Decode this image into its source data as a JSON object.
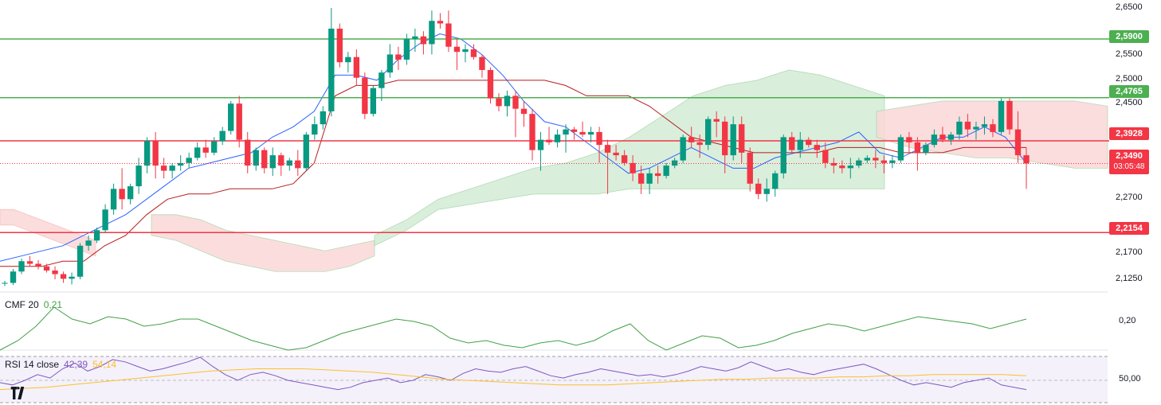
{
  "colors": {
    "up": "#089981",
    "down": "#f23645",
    "support_line": "#4caf50",
    "resistance_line": "#f23645",
    "tenkan": "#2962ff",
    "kijun": "#b71c1c",
    "cloud_bull": "#d4ecd6",
    "cloud_bear": "#fbd8d8",
    "cmf_line": "#43a047",
    "rsi_line": "#7e57c2",
    "rsi_ma": "#fbc02d"
  },
  "price_axis": {
    "ticks": [
      "2,6500",
      "2,5500",
      "2,5000",
      "2,4500",
      "2,2700",
      "2,1700",
      "2,1250"
    ]
  },
  "levels": [
    {
      "label": "2,5900",
      "kind": "support"
    },
    {
      "label": "2,4765",
      "kind": "support"
    },
    {
      "label": "2,3928",
      "kind": "resistance"
    },
    {
      "label": "2,2154",
      "kind": "resistance"
    }
  ],
  "current_price": {
    "label": "2,3490",
    "countdown": "03:05:48"
  },
  "cmf": {
    "name": "CMF 20",
    "value": "0,21",
    "axis_label": "0,20"
  },
  "rsi": {
    "name": "RSI 14 close",
    "value": "42,39",
    "ma_value": "54,14",
    "axis_label": "50,00"
  },
  "chart_data": {
    "type": "candlestick",
    "price_axis_labels": [
      "2,6500",
      "2,5500",
      "2,5000",
      "2,4500",
      "2,2700",
      "2,1700",
      "2,1250"
    ],
    "horizontal_levels": [
      2.59,
      2.4765,
      2.3928,
      2.2154
    ],
    "last_price": 2.349,
    "candles_ohlc": [
      [
        2.117,
        2.122,
        2.112,
        2.118
      ],
      [
        2.118,
        2.145,
        2.114,
        2.14
      ],
      [
        2.14,
        2.165,
        2.135,
        2.16
      ],
      [
        2.16,
        2.17,
        2.15,
        2.155
      ],
      [
        2.155,
        2.162,
        2.144,
        2.15
      ],
      [
        2.15,
        2.155,
        2.138,
        2.142
      ],
      [
        2.142,
        2.15,
        2.125,
        2.135
      ],
      [
        2.135,
        2.14,
        2.118,
        2.126
      ],
      [
        2.126,
        2.138,
        2.115,
        2.13
      ],
      [
        2.13,
        2.195,
        2.125,
        2.19
      ],
      [
        2.19,
        2.21,
        2.18,
        2.2
      ],
      [
        2.2,
        2.225,
        2.195,
        2.22
      ],
      [
        2.22,
        2.27,
        2.215,
        2.26
      ],
      [
        2.26,
        2.31,
        2.25,
        2.3
      ],
      [
        2.3,
        2.34,
        2.26,
        2.28
      ],
      [
        2.28,
        2.31,
        2.27,
        2.305
      ],
      [
        2.305,
        2.36,
        2.29,
        2.345
      ],
      [
        2.345,
        2.4,
        2.33,
        2.393
      ],
      [
        2.393,
        2.41,
        2.32,
        2.345
      ],
      [
        2.345,
        2.36,
        2.32,
        2.335
      ],
      [
        2.335,
        2.35,
        2.32,
        2.345
      ],
      [
        2.345,
        2.365,
        2.335,
        2.35
      ],
      [
        2.35,
        2.37,
        2.34,
        2.36
      ],
      [
        2.36,
        2.39,
        2.355,
        2.38
      ],
      [
        2.38,
        2.395,
        2.36,
        2.37
      ],
      [
        2.37,
        2.4,
        2.365,
        2.392
      ],
      [
        2.392,
        2.42,
        2.385,
        2.412
      ],
      [
        2.412,
        2.47,
        2.405,
        2.465
      ],
      [
        2.465,
        2.48,
        2.38,
        2.395
      ],
      [
        2.395,
        2.41,
        2.33,
        2.345
      ],
      [
        2.345,
        2.38,
        2.335,
        2.375
      ],
      [
        2.375,
        2.38,
        2.33,
        2.34
      ],
      [
        2.34,
        2.38,
        2.325,
        2.365
      ],
      [
        2.365,
        2.37,
        2.325,
        2.345
      ],
      [
        2.345,
        2.36,
        2.335,
        2.355
      ],
      [
        2.355,
        2.375,
        2.325,
        2.34
      ],
      [
        2.34,
        2.41,
        2.335,
        2.405
      ],
      [
        2.405,
        2.44,
        2.395,
        2.425
      ],
      [
        2.425,
        2.46,
        2.415,
        2.45
      ],
      [
        2.45,
        2.65,
        2.44,
        2.61
      ],
      [
        2.61,
        2.62,
        2.535,
        2.545
      ],
      [
        2.545,
        2.565,
        2.525,
        2.555
      ],
      [
        2.555,
        2.57,
        2.5,
        2.515
      ],
      [
        2.515,
        2.525,
        2.435,
        2.445
      ],
      [
        2.445,
        2.5,
        2.44,
        2.495
      ],
      [
        2.495,
        2.53,
        2.47,
        2.525
      ],
      [
        2.525,
        2.58,
        2.515,
        2.56
      ],
      [
        2.56,
        2.575,
        2.53,
        2.55
      ],
      [
        2.55,
        2.6,
        2.54,
        2.59
      ],
      [
        2.59,
        2.61,
        2.565,
        2.595
      ],
      [
        2.595,
        2.605,
        2.56,
        2.58
      ],
      [
        2.58,
        2.645,
        2.56,
        2.625
      ],
      [
        2.625,
        2.64,
        2.61,
        2.62
      ],
      [
        2.62,
        2.645,
        2.565,
        2.575
      ],
      [
        2.575,
        2.59,
        2.53,
        2.565
      ],
      [
        2.565,
        2.58,
        2.545,
        2.57
      ],
      [
        2.57,
        2.58,
        2.55,
        2.555
      ],
      [
        2.555,
        2.56,
        2.515,
        2.53
      ],
      [
        2.53,
        2.535,
        2.465,
        2.475
      ],
      [
        2.475,
        2.485,
        2.45,
        2.46
      ],
      [
        2.46,
        2.49,
        2.44,
        2.48
      ],
      [
        2.48,
        2.49,
        2.4,
        2.455
      ],
      [
        2.455,
        2.47,
        2.42,
        2.445
      ],
      [
        2.445,
        2.455,
        2.355,
        2.375
      ],
      [
        2.375,
        2.41,
        2.335,
        2.395
      ],
      [
        2.395,
        2.42,
        2.385,
        2.39
      ],
      [
        2.39,
        2.415,
        2.38,
        2.405
      ],
      [
        2.405,
        2.425,
        2.37,
        2.415
      ],
      [
        2.415,
        2.42,
        2.395,
        2.41
      ],
      [
        2.41,
        2.43,
        2.4,
        2.405
      ],
      [
        2.405,
        2.42,
        2.39,
        2.41
      ],
      [
        2.41,
        2.42,
        2.35,
        2.385
      ],
      [
        2.385,
        2.395,
        2.29,
        2.37
      ],
      [
        2.37,
        2.385,
        2.355,
        2.365
      ],
      [
        2.365,
        2.375,
        2.345,
        2.35
      ],
      [
        2.35,
        2.365,
        2.315,
        2.33
      ],
      [
        2.33,
        2.345,
        2.29,
        2.31
      ],
      [
        2.31,
        2.34,
        2.29,
        2.33
      ],
      [
        2.33,
        2.345,
        2.31,
        2.325
      ],
      [
        2.325,
        2.35,
        2.32,
        2.345
      ],
      [
        2.345,
        2.36,
        2.34,
        2.355
      ],
      [
        2.355,
        2.405,
        2.35,
        2.4
      ],
      [
        2.4,
        2.42,
        2.38,
        2.39
      ],
      [
        2.39,
        2.405,
        2.36,
        2.385
      ],
      [
        2.385,
        2.44,
        2.375,
        2.435
      ],
      [
        2.435,
        2.45,
        2.4,
        2.43
      ],
      [
        2.43,
        2.44,
        2.33,
        2.365
      ],
      [
        2.365,
        2.44,
        2.355,
        2.425
      ],
      [
        2.425,
        2.44,
        2.35,
        2.37
      ],
      [
        2.37,
        2.38,
        2.295,
        2.31
      ],
      [
        2.31,
        2.32,
        2.28,
        2.29
      ],
      [
        2.29,
        2.32,
        2.275,
        2.3
      ],
      [
        2.3,
        2.335,
        2.285,
        2.33
      ],
      [
        2.33,
        2.405,
        2.32,
        2.4
      ],
      [
        2.4,
        2.41,
        2.37,
        2.375
      ],
      [
        2.375,
        2.41,
        2.36,
        2.395
      ],
      [
        2.395,
        2.4,
        2.38,
        2.385
      ],
      [
        2.385,
        2.395,
        2.36,
        2.375
      ],
      [
        2.375,
        2.39,
        2.34,
        2.35
      ],
      [
        2.35,
        2.36,
        2.33,
        2.345
      ],
      [
        2.345,
        2.355,
        2.33,
        2.34
      ],
      [
        2.34,
        2.36,
        2.32,
        2.345
      ],
      [
        2.345,
        2.36,
        2.34,
        2.355
      ],
      [
        2.355,
        2.365,
        2.35,
        2.36
      ],
      [
        2.36,
        2.375,
        2.34,
        2.355
      ],
      [
        2.355,
        2.365,
        2.33,
        2.35
      ],
      [
        2.35,
        2.365,
        2.34,
        2.355
      ],
      [
        2.355,
        2.405,
        2.35,
        2.4
      ],
      [
        2.4,
        2.41,
        2.37,
        2.39
      ],
      [
        2.39,
        2.4,
        2.335,
        2.37
      ],
      [
        2.37,
        2.39,
        2.365,
        2.385
      ],
      [
        2.385,
        2.415,
        2.38,
        2.405
      ],
      [
        2.405,
        2.42,
        2.39,
        2.395
      ],
      [
        2.395,
        2.41,
        2.385,
        2.405
      ],
      [
        2.405,
        2.44,
        2.395,
        2.43
      ],
      [
        2.43,
        2.445,
        2.4,
        2.415
      ],
      [
        2.415,
        2.43,
        2.395,
        2.42
      ],
      [
        2.42,
        2.44,
        2.405,
        2.425
      ],
      [
        2.425,
        2.435,
        2.4,
        2.41
      ],
      [
        2.41,
        2.475,
        2.405,
        2.47
      ],
      [
        2.47,
        2.475,
        2.405,
        2.415
      ],
      [
        2.415,
        2.45,
        2.35,
        2.365
      ],
      [
        2.365,
        2.38,
        2.3,
        2.349
      ]
    ],
    "tenkan": [
      2.16,
      2.17,
      2.18,
      2.19,
      2.21,
      2.23,
      2.25,
      2.28,
      2.31,
      2.34,
      2.35,
      2.36,
      2.37,
      2.4,
      2.42,
      2.45,
      2.52,
      2.52,
      2.51,
      2.55,
      2.58,
      2.6,
      2.59,
      2.56,
      2.52,
      2.47,
      2.43,
      2.42,
      2.39,
      2.36,
      2.33,
      2.34,
      2.36,
      2.38,
      2.36,
      2.34,
      2.34,
      2.36,
      2.37,
      2.38,
      2.39,
      2.41,
      2.37,
      2.36,
      2.38,
      2.4,
      2.4,
      2.42,
      2.4,
      2.35
    ],
    "kijun": [
      2.15,
      2.15,
      2.15,
      2.16,
      2.16,
      2.19,
      2.21,
      2.25,
      2.28,
      2.29,
      2.29,
      2.3,
      2.3,
      2.3,
      2.31,
      2.35,
      2.48,
      2.5,
      2.5,
      2.51,
      2.51,
      2.51,
      2.51,
      2.51,
      2.51,
      2.51,
      2.51,
      2.5,
      2.48,
      2.48,
      2.48,
      2.46,
      2.43,
      2.4,
      2.39,
      2.38,
      2.37,
      2.37,
      2.37,
      2.37,
      2.38,
      2.38,
      2.38,
      2.37,
      2.37,
      2.37,
      2.38,
      2.38,
      2.38,
      2.38
    ],
    "cmf_values": [
      0.08,
      0.12,
      0.18,
      0.26,
      0.21,
      0.19,
      0.22,
      0.21,
      0.18,
      0.19,
      0.21,
      0.21,
      0.18,
      0.15,
      0.12,
      0.1,
      0.08,
      0.09,
      0.12,
      0.15,
      0.17,
      0.19,
      0.21,
      0.2,
      0.18,
      0.13,
      0.11,
      0.12,
      0.1,
      0.09,
      0.11,
      0.12,
      0.1,
      0.12,
      0.16,
      0.19,
      0.12,
      0.08,
      0.11,
      0.14,
      0.13,
      0.09,
      0.1,
      0.12,
      0.15,
      0.17,
      0.19,
      0.18,
      0.16,
      0.18,
      0.2,
      0.22,
      0.21,
      0.2,
      0.19,
      0.17,
      0.19,
      0.21
    ],
    "rsi_values": [
      48,
      46,
      50,
      55,
      52,
      60,
      65,
      58,
      62,
      68,
      66,
      62,
      58,
      60,
      63,
      66,
      70,
      62,
      55,
      50,
      55,
      57,
      54,
      50,
      48,
      46,
      44,
      42,
      44,
      48,
      50,
      52,
      48,
      50,
      55,
      53,
      50,
      56,
      60,
      58,
      57,
      60,
      62,
      58,
      54,
      52,
      55,
      57,
      60,
      58,
      56,
      54,
      55,
      53,
      55,
      58,
      62,
      60,
      58,
      61,
      66,
      62,
      58,
      60,
      57,
      55,
      58,
      60,
      62,
      64,
      60,
      55,
      50,
      46,
      48,
      46,
      44,
      48,
      50,
      52,
      46,
      44,
      42
    ],
    "rsi_ma_values": [
      42,
      43,
      44,
      46,
      48,
      50,
      52,
      54,
      56,
      58,
      59,
      60,
      60,
      60,
      59,
      58,
      57,
      55,
      53,
      51,
      50,
      49,
      48,
      47,
      46,
      46,
      46,
      47,
      48,
      49,
      50,
      51,
      51,
      52,
      52,
      52,
      53,
      53,
      54,
      54,
      55,
      55,
      55,
      55,
      54
    ]
  }
}
